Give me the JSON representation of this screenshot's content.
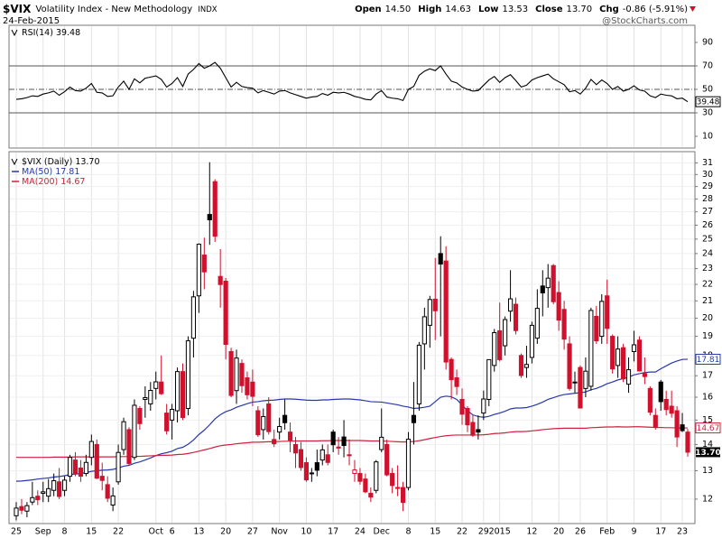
{
  "header": {
    "symbol": "$VIX",
    "name": "Volatility Index - New Methodology",
    "exchange": "INDX",
    "date": "24-Feb-2015",
    "source": "@StockCharts.com",
    "quote": [
      {
        "label": "Open",
        "value": "14.50"
      },
      {
        "label": "High",
        "value": "14.63"
      },
      {
        "label": "Low",
        "value": "13.53"
      },
      {
        "label": "Close",
        "value": "13.70"
      },
      {
        "label": "Chg",
        "value": "-0.86 (-5.91%)"
      }
    ]
  },
  "chart_data": [
    {
      "type": "line",
      "ylim": [
        0,
        100
      ],
      "yticks": [
        10,
        30,
        50,
        70,
        90
      ],
      "reference_lines": [
        30,
        70
      ],
      "midline": 50,
      "series": [
        {
          "name": "RSI(14)",
          "color": "#000000",
          "values": [
            41.5,
            42.0,
            43.0,
            44.5,
            44.0,
            46.0,
            47.0,
            48.5,
            45.0,
            48.0,
            52.0,
            49.0,
            48.5,
            51.0,
            55.0,
            47.5,
            47.0,
            44.0,
            44.5,
            52.0,
            57.0,
            50.0,
            59.0,
            55.5,
            59.5,
            60.5,
            61.5,
            58.5,
            52.0,
            55.0,
            60.0,
            52.5,
            63.0,
            67.0,
            72.0,
            68.0,
            70.0,
            73.0,
            68.0,
            60.0,
            52.0,
            56.0,
            52.5,
            51.5,
            51.0,
            47.0,
            49.0,
            47.5,
            46.0,
            48.5,
            49.0,
            47.0,
            45.5,
            44.0,
            42.5,
            43.5,
            44.0,
            46.5,
            45.0,
            47.5,
            47.0,
            47.5,
            46.0,
            44.0,
            43.0,
            41.5,
            41.0,
            46.0,
            49.0,
            43.5,
            42.5,
            42.0,
            40.5,
            50.0,
            52.5,
            62.0,
            65.5,
            67.5,
            66.0,
            70.0,
            63.0,
            57.0,
            55.5,
            52.0,
            50.0,
            48.5,
            49.0,
            53.5,
            58.0,
            61.0,
            56.0,
            60.0,
            62.5,
            57.5,
            52.0,
            53.5,
            58.0,
            60.0,
            61.5,
            63.0,
            59.0,
            56.5,
            54.0,
            48.0,
            49.0,
            46.0,
            51.0,
            58.5,
            54.0,
            58.0,
            55.0,
            50.0,
            52.5,
            48.5,
            50.0,
            53.0,
            49.5,
            48.5,
            44.5,
            43.0,
            46.0,
            45.0,
            44.5,
            42.0,
            42.5,
            39.48
          ]
        }
      ]
    },
    {
      "type": "candlestick",
      "title": "$VIX (Daily)",
      "log_scale": true,
      "grid": true,
      "up_color": "#000000",
      "down_color": "#d0102c",
      "ylim": [
        11.2,
        32
      ],
      "yticks": [
        12,
        13,
        14,
        15,
        16,
        17,
        18,
        19,
        20,
        21,
        22,
        23,
        24,
        25,
        26,
        27,
        28,
        29,
        30,
        31
      ],
      "categories": [
        "25",
        null,
        null,
        null,
        null,
        "Sep",
        null,
        null,
        null,
        "8",
        null,
        null,
        null,
        null,
        "15",
        null,
        null,
        null,
        null,
        "22",
        null,
        null,
        null,
        null,
        null,
        null,
        "Oct",
        null,
        null,
        "6",
        null,
        null,
        null,
        null,
        "13",
        null,
        null,
        null,
        null,
        "20",
        null,
        null,
        null,
        null,
        "27",
        null,
        null,
        null,
        null,
        "Nov",
        null,
        null,
        null,
        null,
        "10",
        null,
        null,
        null,
        null,
        "17",
        null,
        null,
        null,
        null,
        "24",
        null,
        null,
        null,
        "Dec",
        null,
        null,
        null,
        null,
        "8",
        null,
        null,
        null,
        null,
        "15",
        null,
        null,
        null,
        null,
        "22",
        null,
        null,
        null,
        "29",
        null,
        null,
        "2015",
        null,
        null,
        null,
        null,
        null,
        "12",
        null,
        null,
        null,
        null,
        "20",
        null,
        null,
        null,
        "26",
        null,
        null,
        null,
        null,
        "Feb",
        null,
        null,
        null,
        null,
        "9",
        null,
        null,
        null,
        null,
        "17",
        null,
        null,
        null,
        "23",
        null
      ],
      "open": [
        11.45,
        11.75,
        11.6,
        11.9,
        12.1,
        12.2,
        12.1,
        12.3,
        12.6,
        12.3,
        12.8,
        13.4,
        13.1,
        12.9,
        13.5,
        14.0,
        12.8,
        12.5,
        11.8,
        12.6,
        13.8,
        14.6,
        13.5,
        15.5,
        15.9,
        15.7,
        16.4,
        16.7,
        15.3,
        15.0,
        15.4,
        17.2,
        15.5,
        18.9,
        21.3,
        23.9,
        26.8,
        29.4,
        22.5,
        22.2,
        18.2,
        16.3,
        17.6,
        16.9,
        16.7,
        15.4,
        14.6,
        15.7,
        14.2,
        14.5,
        15.2,
        14.5,
        14.0,
        13.8,
        13.3,
        12.9,
        13.3,
        13.4,
        13.6,
        14.5,
        13.9,
        14.3,
        13.6,
        12.9,
        12.9,
        12.7,
        12.2,
        12.3,
        13.8,
        14.0,
        12.9,
        12.4,
        12.4,
        12.4,
        15.2,
        15.7,
        18.6,
        19.6,
        21.1,
        24.0,
        23.5,
        17.8,
        16.9,
        15.9,
        15.5,
        14.9,
        14.6,
        15.3,
        15.9,
        17.5,
        19.3,
        18.5,
        20.4,
        20.8,
        18.0,
        17.4,
        17.9,
        18.9,
        21.9,
        21.8,
        23.2,
        21.5,
        20.5,
        18.6,
        16.7,
        17.4,
        16.4,
        16.5,
        20.1,
        19.0,
        21.3,
        19.0,
        17.5,
        18.4,
        16.6,
        18.2,
        18.8,
        17.1,
        16.4,
        15.2,
        16.7,
        15.9,
        15.6,
        15.4,
        14.8,
        14.5
      ],
      "high": [
        11.9,
        12.0,
        11.9,
        12.6,
        12.3,
        12.6,
        12.7,
        12.9,
        13.1,
        12.8,
        13.6,
        13.7,
        13.4,
        13.6,
        14.4,
        14.2,
        13.3,
        12.8,
        12.4,
        14.0,
        15.1,
        14.7,
        15.9,
        15.6,
        16.5,
        16.7,
        17.2,
        18.0,
        15.7,
        15.7,
        17.4,
        17.6,
        19.0,
        21.6,
        24.7,
        25.1,
        31.06,
        29.6,
        24.3,
        22.4,
        18.4,
        18.3,
        17.8,
        17.2,
        17.3,
        15.6,
        15.5,
        16.0,
        14.6,
        15.1,
        15.9,
        14.9,
        14.3,
        14.1,
        13.5,
        13.1,
        13.8,
        14.0,
        14.0,
        14.6,
        14.3,
        15.0,
        14.2,
        13.4,
        13.1,
        12.9,
        12.4,
        13.4,
        15.5,
        14.2,
        13.1,
        13.2,
        12.6,
        14.5,
        16.7,
        18.7,
        20.6,
        21.3,
        23.7,
        25.2,
        24.5,
        17.9,
        17.3,
        16.4,
        15.6,
        15.2,
        15.2,
        16.3,
        17.8,
        19.4,
        20.9,
        20.1,
        22.9,
        21.2,
        18.1,
        18.5,
        19.8,
        21.7,
        22.9,
        23.3,
        23.3,
        22.2,
        21.0,
        19.0,
        17.2,
        17.5,
        17.9,
        20.6,
        20.7,
        21.4,
        22.3,
        19.1,
        19.0,
        18.6,
        17.9,
        19.3,
        19.0,
        17.9,
        16.5,
        15.5,
        16.8,
        16.3,
        16.3,
        15.6,
        15.3,
        14.63
      ],
      "low": [
        11.3,
        11.5,
        11.4,
        11.8,
        11.8,
        11.9,
        11.9,
        12.1,
        12.0,
        12.1,
        12.6,
        12.8,
        12.6,
        12.8,
        13.2,
        12.7,
        12.3,
        11.9,
        11.6,
        12.5,
        13.6,
        13.2,
        13.4,
        14.6,
        15.1,
        15.4,
        15.9,
        16.1,
        14.4,
        14.2,
        14.9,
        15.0,
        15.2,
        17.9,
        20.3,
        21.7,
        24.6,
        24.8,
        20.6,
        17.8,
        16.0,
        15.7,
        16.2,
        15.9,
        15.6,
        14.3,
        14.2,
        14.4,
        13.9,
        14.2,
        14.6,
        13.7,
        13.1,
        13.0,
        12.6,
        12.6,
        12.8,
        13.2,
        13.2,
        13.7,
        13.6,
        13.5,
        13.2,
        12.6,
        12.5,
        12.2,
        11.9,
        12.2,
        13.7,
        12.8,
        12.2,
        12.1,
        11.6,
        12.3,
        14.0,
        15.4,
        17.3,
        18.4,
        18.8,
        19.0,
        17.3,
        15.9,
        16.1,
        14.8,
        14.5,
        14.3,
        14.2,
        15.0,
        15.6,
        17.2,
        17.7,
        18.0,
        19.8,
        19.1,
        16.9,
        16.9,
        17.6,
        18.6,
        20.1,
        20.6,
        20.8,
        19.3,
        18.3,
        16.3,
        16.2,
        15.5,
        16.0,
        16.3,
        18.6,
        18.6,
        18.6,
        17.1,
        16.9,
        16.7,
        16.2,
        17.7,
        17.2,
        16.6,
        15.2,
        14.6,
        15.4,
        15.2,
        15.1,
        13.9,
        14.5,
        13.53
      ],
      "close": [
        11.7,
        11.63,
        11.78,
        12.05,
        11.98,
        12.25,
        12.36,
        12.64,
        12.09,
        12.66,
        13.5,
        12.88,
        12.8,
        13.31,
        14.12,
        12.73,
        12.65,
        12.03,
        12.11,
        13.69,
        14.93,
        13.27,
        15.64,
        14.85,
        15.98,
        16.31,
        16.71,
        16.16,
        14.55,
        15.46,
        17.2,
        15.11,
        18.76,
        21.24,
        24.64,
        22.79,
        26.4,
        25.2,
        21.99,
        18.57,
        16.08,
        17.87,
        16.53,
        16.11,
        16.04,
        14.39,
        15.15,
        14.52,
        14.03,
        14.73,
        14.89,
        14.17,
        13.67,
        13.12,
        12.67,
        12.92,
        13.02,
        13.79,
        13.31,
        13.99,
        13.86,
        13.96,
        13.58,
        13.03,
        12.62,
        12.25,
        12.07,
        13.33,
        14.29,
        12.85,
        12.47,
        12.38,
        11.89,
        14.21,
        14.89,
        18.53,
        20.08,
        21.08,
        20.42,
        23.3,
        17.67,
        16.81,
        16.49,
        15.25,
        14.8,
        14.37,
        14.5,
        15.92,
        17.79,
        19.2,
        17.79,
        19.92,
        21.12,
        19.31,
        17.01,
        17.55,
        19.6,
        20.56,
        21.48,
        22.39,
        20.95,
        19.89,
        18.85,
        16.4,
        16.66,
        15.52,
        17.22,
        20.44,
        18.76,
        20.97,
        19.43,
        17.33,
        18.33,
        16.85,
        17.29,
        18.55,
        17.23,
        16.96,
        15.34,
        14.69,
        15.8,
        15.45,
        15.29,
        14.3,
        14.56,
        13.7
      ],
      "series": [
        {
          "name": "MA(50)",
          "color": "#2838a8",
          "values": [
            12.62,
            12.63,
            12.65,
            12.67,
            12.7,
            12.72,
            12.74,
            12.77,
            12.79,
            12.82,
            12.86,
            12.88,
            12.9,
            12.93,
            12.98,
            13.0,
            13.02,
            13.03,
            13.05,
            13.1,
            13.17,
            13.2,
            13.28,
            13.33,
            13.4,
            13.48,
            13.57,
            13.64,
            13.68,
            13.74,
            13.84,
            13.89,
            14.01,
            14.18,
            14.4,
            14.58,
            14.8,
            15.05,
            15.23,
            15.36,
            15.44,
            15.55,
            15.63,
            15.71,
            15.78,
            15.8,
            15.84,
            15.86,
            15.87,
            15.9,
            15.92,
            15.92,
            15.91,
            15.89,
            15.87,
            15.86,
            15.86,
            15.88,
            15.88,
            15.9,
            15.91,
            15.92,
            15.92,
            15.9,
            15.88,
            15.84,
            15.8,
            15.79,
            15.78,
            15.74,
            15.7,
            15.66,
            15.6,
            15.56,
            15.5,
            15.52,
            15.55,
            15.6,
            15.8,
            16.0,
            16.05,
            16.02,
            15.9,
            15.65,
            15.4,
            15.22,
            15.15,
            15.12,
            15.16,
            15.24,
            15.3,
            15.38,
            15.48,
            15.52,
            15.52,
            15.54,
            15.6,
            15.68,
            15.78,
            15.9,
            15.98,
            16.06,
            16.12,
            16.15,
            16.18,
            16.2,
            16.24,
            16.34,
            16.4,
            16.5,
            16.62,
            16.7,
            16.8,
            16.86,
            16.93,
            17.04,
            17.1,
            17.15,
            17.18,
            17.18,
            17.34,
            17.48,
            17.62,
            17.72,
            17.8,
            17.81
          ]
        },
        {
          "name": "MA(200)",
          "color": "#d0203c",
          "values": [
            13.5,
            13.5,
            13.5,
            13.5,
            13.5,
            13.5,
            13.5,
            13.51,
            13.51,
            13.51,
            13.51,
            13.52,
            13.52,
            13.52,
            13.52,
            13.52,
            13.52,
            13.52,
            13.52,
            13.53,
            13.53,
            13.53,
            13.54,
            13.54,
            13.55,
            13.56,
            13.57,
            13.58,
            13.58,
            13.59,
            13.61,
            13.62,
            13.65,
            13.69,
            13.74,
            13.79,
            13.84,
            13.9,
            13.95,
            13.98,
            14.0,
            14.03,
            14.05,
            14.07,
            14.09,
            14.09,
            14.1,
            14.11,
            14.11,
            14.12,
            14.13,
            14.13,
            14.14,
            14.14,
            14.14,
            14.14,
            14.14,
            14.15,
            14.15,
            14.16,
            14.16,
            14.16,
            14.16,
            14.16,
            14.16,
            14.15,
            14.14,
            14.14,
            14.14,
            14.13,
            14.12,
            14.11,
            14.1,
            14.11,
            14.12,
            14.15,
            14.19,
            14.24,
            14.28,
            14.32,
            14.35,
            14.37,
            14.38,
            14.38,
            14.38,
            14.38,
            14.38,
            14.39,
            14.41,
            14.44,
            14.45,
            14.47,
            14.5,
            14.52,
            14.52,
            14.53,
            14.55,
            14.57,
            14.6,
            14.62,
            14.64,
            14.65,
            14.66,
            14.66,
            14.66,
            14.66,
            14.66,
            14.68,
            14.69,
            14.7,
            14.71,
            14.71,
            14.72,
            14.71,
            14.71,
            14.72,
            14.72,
            14.71,
            14.7,
            14.69,
            14.69,
            14.68,
            14.68,
            14.67,
            14.67,
            14.67
          ]
        }
      ]
    }
  ]
}
